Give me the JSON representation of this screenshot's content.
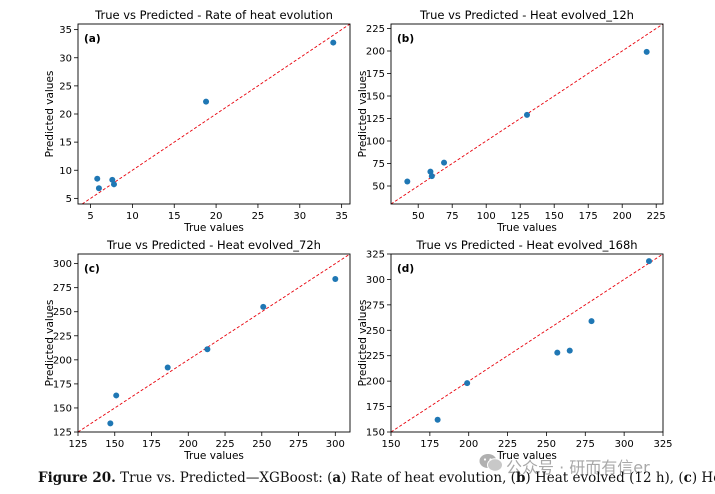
{
  "caption": {
    "label": "Figure 20.",
    "p1": "True vs. Predicted—XGBoost: (",
    "a": "a",
    "p2": ") Rate of heat evolution, (",
    "b": "b",
    "p3": ") Heat evolved (12 h), (",
    "c": "c",
    "p4": ") Heat"
  },
  "watermark": {
    "text": "公众号 · 研而有信er",
    "icon": "wechat-icon"
  },
  "chart_data": [
    {
      "type": "scatter",
      "panel": "(a)",
      "title": "True vs Predicted - Rate of heat evolution",
      "xlabel": "True values",
      "ylabel": "Predicted values",
      "xlim": [
        3.5,
        36
      ],
      "ylim": [
        4,
        36
      ],
      "xticks": [
        5,
        10,
        15,
        20,
        25,
        30,
        35
      ],
      "yticks": [
        5,
        10,
        15,
        20,
        25,
        30,
        35
      ],
      "x": [
        5.8,
        6.0,
        7.6,
        7.8,
        18.8,
        34.0
      ],
      "y": [
        8.5,
        6.8,
        8.3,
        7.5,
        22.2,
        32.7
      ]
    },
    {
      "type": "scatter",
      "panel": "(b)",
      "title": "True vs Predicted - Heat evolved_12h",
      "xlabel": "True values",
      "ylabel": "Predicted values",
      "xlim": [
        30,
        230
      ],
      "ylim": [
        30,
        230
      ],
      "xticks": [
        50,
        75,
        100,
        125,
        150,
        175,
        200,
        225
      ],
      "yticks": [
        50,
        75,
        100,
        125,
        150,
        175,
        200,
        225
      ],
      "x": [
        42,
        59,
        60,
        69,
        130,
        218
      ],
      "y": [
        55,
        66,
        61,
        76,
        129,
        199
      ]
    },
    {
      "type": "scatter",
      "panel": "(c)",
      "title": "True vs Predicted - Heat evolved_72h",
      "xlabel": "True values",
      "ylabel": "Predicted values",
      "xlim": [
        125,
        310
      ],
      "ylim": [
        125,
        310
      ],
      "xticks": [
        125,
        150,
        175,
        200,
        225,
        250,
        275,
        300
      ],
      "yticks": [
        125,
        150,
        175,
        200,
        225,
        250,
        275,
        300
      ],
      "x": [
        147,
        151,
        186,
        213,
        251,
        300
      ],
      "y": [
        134,
        163,
        192,
        211,
        255,
        284
      ]
    },
    {
      "type": "scatter",
      "panel": "(d)",
      "title": "True vs Predicted - Heat evolved_168h",
      "xlabel": "True values",
      "ylabel": "Predicted values",
      "xlim": [
        150,
        325
      ],
      "ylim": [
        150,
        325
      ],
      "xticks": [
        150,
        175,
        200,
        225,
        250,
        275,
        300,
        325
      ],
      "yticks": [
        150,
        175,
        200,
        225,
        250,
        275,
        300,
        325
      ],
      "x": [
        180,
        199,
        257,
        265,
        279,
        316
      ],
      "y": [
        162,
        198,
        228,
        230,
        259,
        318
      ]
    }
  ],
  "style": {
    "point_color": "#1f77b4",
    "line_color": "#e8000b"
  }
}
